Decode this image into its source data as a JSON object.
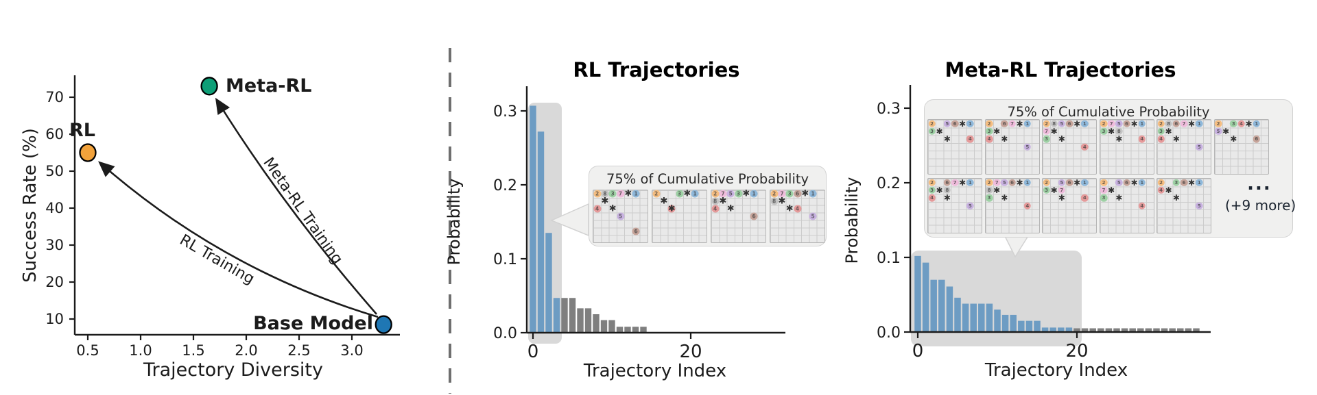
{
  "figure": {
    "divider_color": "#6f6f6f",
    "background": "#ffffff",
    "text_color": "#1b1b1b"
  },
  "chart_data": [
    {
      "id": "tradeoff_scatter",
      "type": "scatter",
      "title": "",
      "xlabel": "Trajectory Diversity",
      "ylabel": "Success Rate (%)",
      "xticks": [
        0.5,
        1.0,
        1.5,
        2.0,
        2.5,
        3.0
      ],
      "yticks": [
        10,
        20,
        30,
        40,
        50,
        60,
        70
      ],
      "xlim": [
        0.35,
        3.45
      ],
      "ylim": [
        5,
        78
      ],
      "grid": false,
      "points": [
        {
          "label": "RL",
          "x": 0.5,
          "y": 55,
          "color": "#F2A23B"
        },
        {
          "label": "Meta-RL",
          "x": 1.65,
          "y": 73,
          "color": "#0E9F77"
        },
        {
          "label": "Base Model",
          "x": 3.3,
          "y": 8.5,
          "color": "#1F77B4"
        }
      ],
      "arrows": [
        {
          "label": "RL Training",
          "from": "Base Model",
          "to": "RL"
        },
        {
          "label": "Meta-RL Training",
          "from": "Base Model",
          "to": "Meta-RL"
        }
      ]
    },
    {
      "id": "rl_trajectories",
      "type": "bar",
      "title": "RL Trajectories",
      "xlabel": "Trajectory Index",
      "ylabel": "Probability",
      "xticks": [
        0,
        20
      ],
      "yticks": [
        0.0,
        0.1,
        0.2,
        0.3
      ],
      "ylim": [
        0,
        0.33
      ],
      "grid": false,
      "values": [
        0.307,
        0.272,
        0.135,
        0.047,
        0.047,
        0.047,
        0.033,
        0.033,
        0.025,
        0.017,
        0.017,
        0.008,
        0.008,
        0.008,
        0.008
      ],
      "highlight_count": 4,
      "bar_color_highlight": "#6D9CC3",
      "bar_color_rest": "#7F7F7F"
    },
    {
      "id": "metarl_trajectories",
      "type": "bar",
      "title": "Meta-RL Trajectories",
      "xlabel": "Trajectory Index",
      "ylabel": "Probability",
      "xticks": [
        0,
        20
      ],
      "yticks": [
        0.0,
        0.1,
        0.2,
        0.3
      ],
      "ylim": [
        0,
        0.33
      ],
      "grid": false,
      "values": [
        0.102,
        0.093,
        0.07,
        0.07,
        0.061,
        0.046,
        0.038,
        0.038,
        0.038,
        0.038,
        0.03,
        0.023,
        0.023,
        0.015,
        0.015,
        0.015,
        0.006,
        0.006,
        0.006,
        0.006,
        0.005,
        0.005,
        0.005,
        0.005,
        0.005,
        0.005,
        0.005,
        0.005,
        0.005,
        0.005,
        0.005,
        0.005,
        0.005,
        0.005,
        0.005,
        0.005
      ],
      "highlight_count": 20,
      "bar_color_highlight": "#6D9CC3",
      "bar_color_rest": "#7F7F7F"
    }
  ],
  "callouts": {
    "rl": {
      "title": "75% of Cumulative Probability",
      "grids": [
        [
          [
            0,
            0,
            "2"
          ],
          [
            0,
            1,
            "8"
          ],
          [
            0,
            2,
            "3"
          ],
          [
            0,
            3,
            "7"
          ],
          [
            0,
            4,
            "*"
          ],
          [
            0,
            5,
            "1"
          ],
          [
            1,
            1,
            "*"
          ],
          [
            2,
            0,
            "4"
          ],
          [
            2,
            2,
            "*"
          ],
          [
            3,
            3,
            "5"
          ],
          [
            5,
            5,
            "6"
          ]
        ],
        [
          [
            0,
            0,
            "2"
          ],
          [
            0,
            3,
            "3"
          ],
          [
            0,
            4,
            "*"
          ],
          [
            0,
            5,
            "1"
          ],
          [
            1,
            1,
            "*"
          ],
          [
            2,
            2,
            "4"
          ],
          [
            2,
            2,
            "*"
          ]
        ],
        [
          [
            0,
            0,
            "2"
          ],
          [
            0,
            1,
            "7"
          ],
          [
            0,
            2,
            "5"
          ],
          [
            0,
            3,
            "3"
          ],
          [
            0,
            4,
            "*"
          ],
          [
            0,
            5,
            "1"
          ],
          [
            1,
            0,
            "8"
          ],
          [
            1,
            1,
            "*"
          ],
          [
            2,
            0,
            "4"
          ],
          [
            2,
            2,
            "*"
          ],
          [
            3,
            5,
            "6"
          ]
        ],
        [
          [
            0,
            0,
            "2"
          ],
          [
            0,
            1,
            "7"
          ],
          [
            0,
            2,
            "3"
          ],
          [
            0,
            3,
            "6"
          ],
          [
            0,
            4,
            "*"
          ],
          [
            0,
            5,
            "1"
          ],
          [
            1,
            0,
            "8"
          ],
          [
            1,
            1,
            "*"
          ],
          [
            2,
            2,
            "*"
          ],
          [
            2,
            3,
            "4"
          ],
          [
            3,
            5,
            "5"
          ]
        ]
      ]
    },
    "metarl": {
      "title": "75% of Cumulative Probability",
      "ellipsis": "...",
      "more_label": "(+9 more)",
      "grids": [
        [
          [
            0,
            0,
            "2"
          ],
          [
            0,
            2,
            "5"
          ],
          [
            0,
            3,
            "6"
          ],
          [
            0,
            4,
            "*"
          ],
          [
            0,
            5,
            "1"
          ],
          [
            1,
            0,
            "3"
          ],
          [
            1,
            1,
            "*"
          ],
          [
            2,
            2,
            "*"
          ],
          [
            2,
            5,
            "4"
          ]
        ],
        [
          [
            0,
            0,
            "2"
          ],
          [
            0,
            2,
            "6"
          ],
          [
            0,
            3,
            "7"
          ],
          [
            0,
            4,
            "*"
          ],
          [
            0,
            5,
            "1"
          ],
          [
            1,
            0,
            "3"
          ],
          [
            1,
            1,
            "*"
          ],
          [
            2,
            0,
            "4"
          ],
          [
            2,
            2,
            "*"
          ],
          [
            3,
            5,
            "5"
          ]
        ],
        [
          [
            0,
            0,
            "2"
          ],
          [
            0,
            1,
            "8"
          ],
          [
            0,
            2,
            "5"
          ],
          [
            0,
            3,
            "6"
          ],
          [
            0,
            4,
            "*"
          ],
          [
            0,
            5,
            "1"
          ],
          [
            1,
            0,
            "7"
          ],
          [
            1,
            1,
            "*"
          ],
          [
            2,
            0,
            "3"
          ],
          [
            2,
            2,
            "*"
          ],
          [
            3,
            5,
            "4"
          ]
        ],
        [
          [
            0,
            0,
            "2"
          ],
          [
            0,
            1,
            "7"
          ],
          [
            0,
            2,
            "5"
          ],
          [
            0,
            3,
            "6"
          ],
          [
            0,
            4,
            "*"
          ],
          [
            0,
            5,
            "1"
          ],
          [
            1,
            0,
            "3"
          ],
          [
            1,
            1,
            "*"
          ],
          [
            1,
            2,
            "8"
          ],
          [
            2,
            2,
            "*"
          ],
          [
            2,
            5,
            "4"
          ]
        ],
        [
          [
            0,
            0,
            "2"
          ],
          [
            0,
            1,
            "8"
          ],
          [
            0,
            2,
            "6"
          ],
          [
            0,
            3,
            "7"
          ],
          [
            0,
            4,
            "*"
          ],
          [
            0,
            5,
            "1"
          ],
          [
            1,
            0,
            "3"
          ],
          [
            1,
            1,
            "*"
          ],
          [
            2,
            0,
            "4"
          ],
          [
            2,
            2,
            "*"
          ],
          [
            3,
            5,
            "5"
          ]
        ],
        [
          [
            0,
            0,
            "2"
          ],
          [
            0,
            2,
            "3"
          ],
          [
            0,
            3,
            "4"
          ],
          [
            0,
            4,
            "*"
          ],
          [
            0,
            5,
            "1"
          ],
          [
            1,
            0,
            "5"
          ],
          [
            1,
            1,
            "*"
          ],
          [
            2,
            2,
            "*"
          ],
          [
            2,
            5,
            "6"
          ]
        ],
        [
          [
            0,
            0,
            "2"
          ],
          [
            0,
            2,
            "6"
          ],
          [
            0,
            3,
            "7"
          ],
          [
            0,
            4,
            "*"
          ],
          [
            0,
            5,
            "1"
          ],
          [
            1,
            0,
            "3"
          ],
          [
            1,
            1,
            "*"
          ],
          [
            1,
            2,
            "8"
          ],
          [
            2,
            0,
            "4"
          ],
          [
            2,
            2,
            "*"
          ],
          [
            3,
            5,
            "5"
          ]
        ],
        [
          [
            0,
            0,
            "2"
          ],
          [
            0,
            1,
            "7"
          ],
          [
            0,
            2,
            "5"
          ],
          [
            0,
            3,
            "6"
          ],
          [
            0,
            4,
            "*"
          ],
          [
            0,
            5,
            "1"
          ],
          [
            1,
            0,
            "8"
          ],
          [
            1,
            1,
            "*"
          ],
          [
            2,
            0,
            "3"
          ],
          [
            2,
            2,
            "*"
          ],
          [
            3,
            5,
            "4"
          ]
        ],
        [
          [
            0,
            0,
            "2"
          ],
          [
            0,
            2,
            "5"
          ],
          [
            0,
            3,
            "6"
          ],
          [
            0,
            4,
            "*"
          ],
          [
            0,
            5,
            "1"
          ],
          [
            1,
            0,
            "3"
          ],
          [
            1,
            1,
            "*"
          ],
          [
            1,
            2,
            "7"
          ],
          [
            2,
            2,
            "*"
          ],
          [
            2,
            5,
            "4"
          ]
        ],
        [
          [
            0,
            0,
            "2"
          ],
          [
            0,
            2,
            "5"
          ],
          [
            0,
            3,
            "6"
          ],
          [
            0,
            4,
            "*"
          ],
          [
            0,
            5,
            "1"
          ],
          [
            1,
            0,
            "7"
          ],
          [
            1,
            1,
            "*"
          ],
          [
            2,
            0,
            "3"
          ],
          [
            2,
            2,
            "*"
          ],
          [
            3,
            5,
            "4"
          ]
        ],
        [
          [
            0,
            0,
            "2"
          ],
          [
            0,
            2,
            "3"
          ],
          [
            0,
            3,
            "6"
          ],
          [
            0,
            4,
            "*"
          ],
          [
            0,
            5,
            "1"
          ],
          [
            1,
            0,
            "4"
          ],
          [
            1,
            1,
            "*"
          ],
          [
            2,
            2,
            "*"
          ],
          [
            3,
            5,
            "5"
          ]
        ]
      ]
    }
  },
  "token_colors": {
    "1": "#8FB8DA",
    "2": "#F5BE82",
    "3": "#9ED1A5",
    "4": "#E59A9A",
    "5": "#C8B2E0",
    "6": "#C6A49A",
    "7": "#EFBCDC",
    "8": "#C4C4C4",
    "*": "#333333"
  },
  "style_colors": {
    "highlight_region": "#d9d9d9",
    "callout_background": "#f0f0ef",
    "callout_border": "#d2d2d2"
  }
}
